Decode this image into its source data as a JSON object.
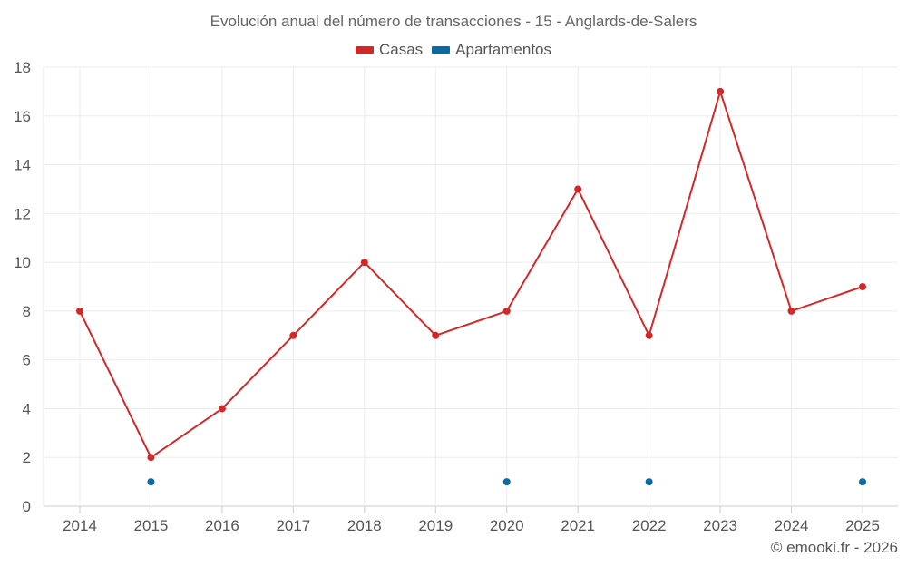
{
  "chart_data": {
    "type": "line",
    "title": "Evolución anual del número de transacciones - 15 - Anglards-de-Salers",
    "categories": [
      "2014",
      "2015",
      "2016",
      "2017",
      "2018",
      "2019",
      "2020",
      "2021",
      "2022",
      "2023",
      "2024",
      "2025"
    ],
    "series": [
      {
        "name": "Casas",
        "color": "#d62728",
        "values": [
          8,
          2,
          4,
          7,
          10,
          7,
          8,
          13,
          7,
          17,
          8,
          9
        ],
        "line": true
      },
      {
        "name": "Apartamentos",
        "color": "#0b6aa2",
        "values": [
          null,
          1,
          null,
          null,
          null,
          null,
          1,
          null,
          1,
          null,
          null,
          1
        ],
        "line": false
      }
    ],
    "ylim": [
      0,
      18
    ],
    "yticks": [
      0,
      2,
      4,
      6,
      8,
      10,
      12,
      14,
      16,
      18
    ],
    "xlabel": "",
    "ylabel": "",
    "grid": true,
    "legend": "top-center"
  },
  "credit": "© emooki.fr - 2026"
}
